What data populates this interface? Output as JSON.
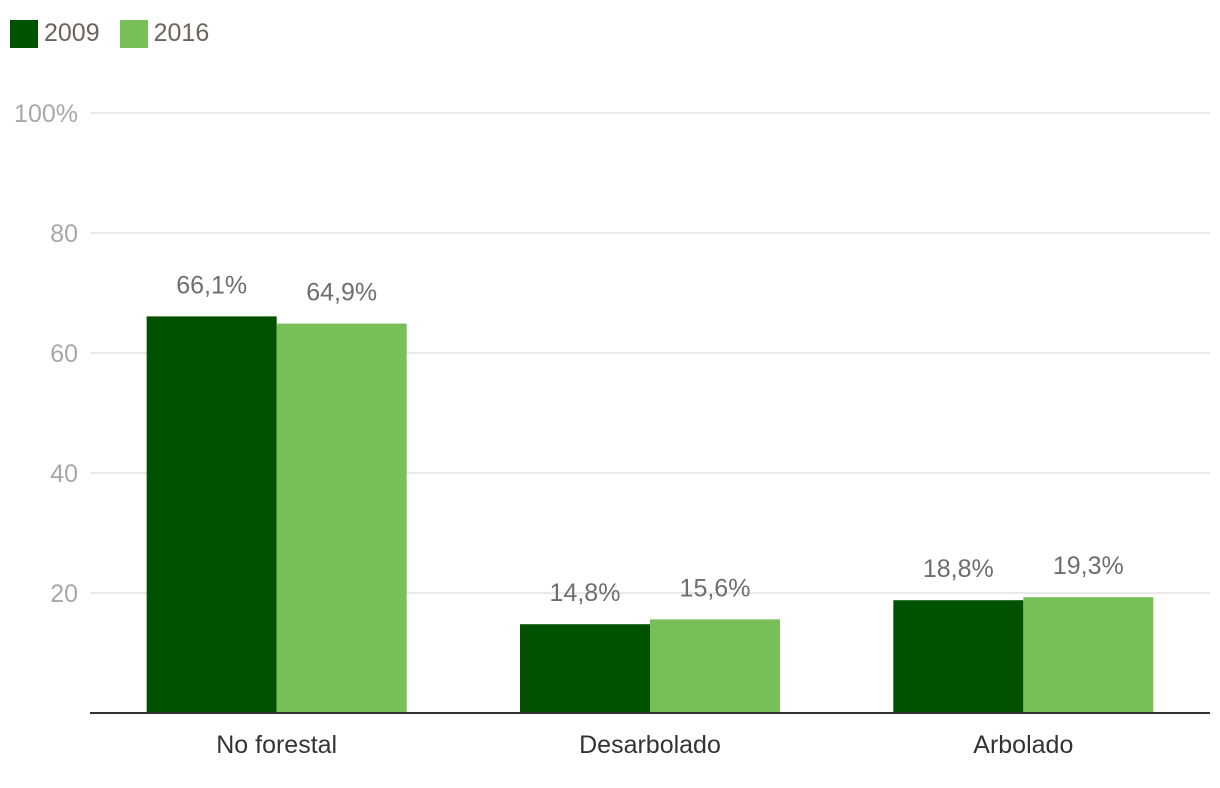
{
  "chart_data": {
    "type": "bar",
    "categories": [
      "No forestal",
      "Desarbolado",
      "Arbolado"
    ],
    "series": [
      {
        "name": "2009",
        "color": "#005100",
        "values": [
          66.1,
          14.8,
          18.8
        ],
        "labels": [
          "66,1%",
          "14,8%",
          "18,8%"
        ]
      },
      {
        "name": "2016",
        "color": "#79bf57",
        "values": [
          64.9,
          15.6,
          19.3
        ],
        "labels": [
          "64,9%",
          "15,6%",
          "19,3%"
        ]
      }
    ],
    "ylim": [
      0,
      100
    ],
    "yticks": [
      20,
      40,
      60,
      80,
      100
    ],
    "ytick_labels": [
      "20",
      "40",
      "60",
      "80",
      "100%"
    ],
    "grid": true,
    "legend": "top-left",
    "title": "",
    "xlabel": "",
    "ylabel": ""
  }
}
